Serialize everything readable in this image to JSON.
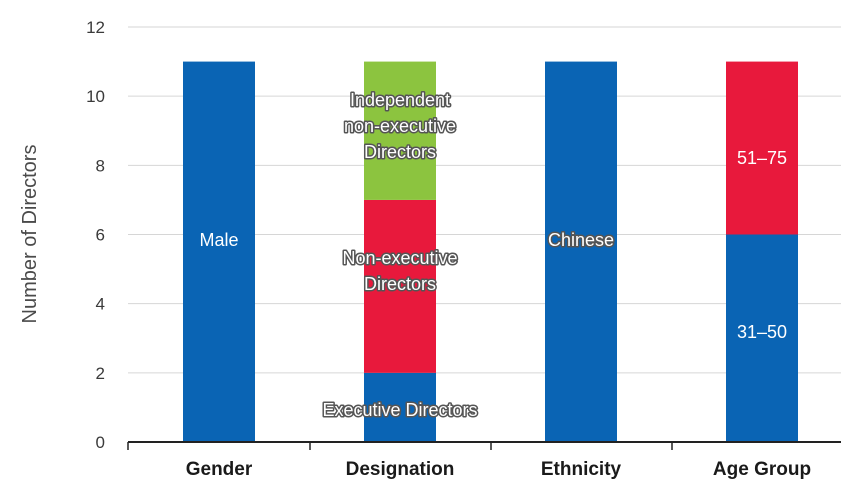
{
  "chart_data": {
    "type": "bar",
    "stacked": true,
    "title": "",
    "xlabel": "",
    "ylabel": "Number of Directors",
    "ylim": [
      0,
      12
    ],
    "yticks": [
      0,
      2,
      4,
      6,
      8,
      10,
      12
    ],
    "grid": true,
    "categories": [
      "Gender",
      "Designation",
      "Ethnicity",
      "Age Group"
    ],
    "bars": [
      {
        "category": "Gender",
        "segments": [
          {
            "label": "Male",
            "value": 11,
            "color": "#0a64b4",
            "label_style": "plain"
          }
        ]
      },
      {
        "category": "Designation",
        "segments": [
          {
            "label": "Executive Directors",
            "value": 2,
            "color": "#0a64b4",
            "label_style": "outlined"
          },
          {
            "label": "Non-executive Directors",
            "value": 5,
            "color": "#e8193c",
            "label_style": "outlined"
          },
          {
            "label": "Independent non-executive Directors",
            "value": 4,
            "color": "#8cc43f",
            "label_style": "outlined"
          }
        ]
      },
      {
        "category": "Ethnicity",
        "segments": [
          {
            "label": "Chinese",
            "value": 11,
            "color": "#0a64b4",
            "label_style": "outlined"
          }
        ]
      },
      {
        "category": "Age Group",
        "segments": [
          {
            "label": "31–50",
            "value": 6,
            "color": "#0a64b4",
            "label_style": "plain"
          },
          {
            "label": "51–75",
            "value": 5,
            "color": "#e8193c",
            "label_style": "plain"
          }
        ]
      }
    ]
  }
}
